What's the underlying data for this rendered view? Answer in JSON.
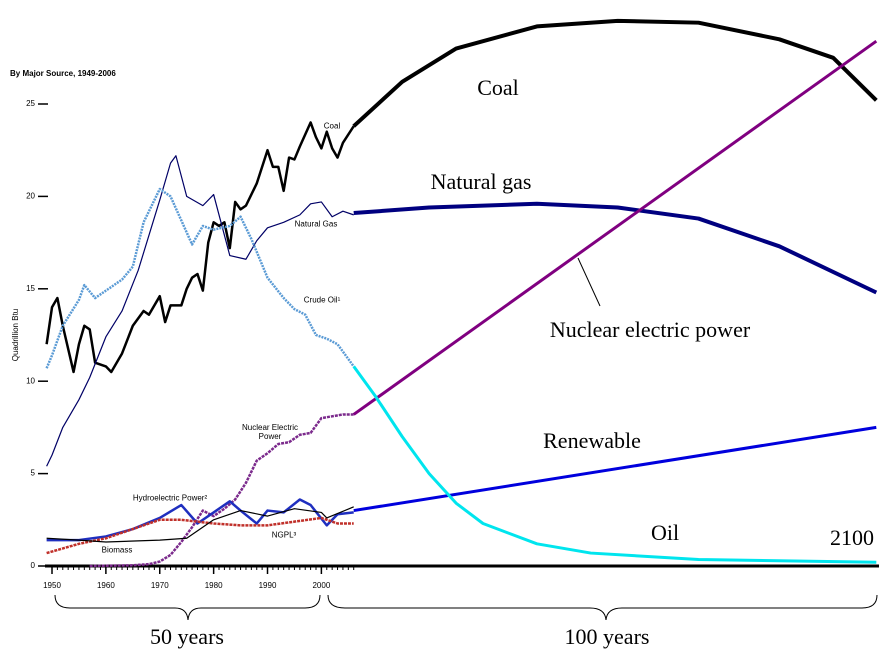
{
  "chart_data": {
    "type": "line",
    "subtitle": "By Major Source, 1949-2006",
    "ylabel": "Quadrillion Btu",
    "xlim": [
      1948.7,
      2103.5
    ],
    "ylim": [
      0,
      30
    ],
    "xticks": [
      1950,
      1960,
      1970,
      1980,
      1990,
      2000
    ],
    "yticks": [
      0,
      5,
      10,
      15,
      20,
      25
    ],
    "series": [
      {
        "name": "Coal",
        "color": "#000000",
        "x": [
          1949,
          1950,
          1951,
          1952,
          1954,
          1955,
          1956,
          1957,
          1958,
          1960,
          1961,
          1963,
          1965,
          1967,
          1968,
          1970,
          1971,
          1972,
          1974,
          1975,
          1976,
          1977,
          1978,
          1979,
          1980,
          1981,
          1982,
          1983,
          1984,
          1985,
          1986,
          1988,
          1990,
          1991,
          1992,
          1993,
          1994,
          1995,
          1996,
          1998,
          1999,
          2000,
          2001,
          2002,
          2003,
          2004,
          2006
        ],
        "values": [
          12,
          14,
          14.5,
          13,
          10.5,
          12,
          13,
          12.8,
          11,
          10.8,
          10.5,
          11.5,
          13,
          13.8,
          13.6,
          14.6,
          13.2,
          14.1,
          14.1,
          15,
          15.6,
          15.8,
          14.9,
          17.5,
          18.6,
          18.4,
          18.6,
          17.2,
          19.7,
          19.3,
          19.5,
          20.7,
          22.5,
          21.6,
          21.6,
          20.3,
          22.1,
          22,
          22.7,
          24,
          23.2,
          22.6,
          23.5,
          22.6,
          22.1,
          22.9,
          23.8
        ]
      },
      {
        "name": "Natural Gas",
        "color": "#000066",
        "x": [
          1949,
          1950,
          1952,
          1955,
          1957,
          1960,
          1963,
          1966,
          1970,
          1972,
          1973,
          1975,
          1978,
          1980,
          1983,
          1986,
          1988,
          1990,
          1993,
          1996,
          1998,
          2000,
          2002,
          2004,
          2006
        ],
        "values": [
          5.4,
          6,
          7.5,
          9,
          10.2,
          12.4,
          13.8,
          16,
          19.8,
          21.8,
          22.2,
          20,
          19.5,
          20.1,
          16.8,
          16.6,
          17.6,
          18.3,
          18.6,
          19,
          19.6,
          19.7,
          18.9,
          19.2,
          19
        ]
      },
      {
        "name": "Crude Oil¹",
        "color": "#5b9bd5",
        "x": [
          1949,
          1950,
          1952,
          1955,
          1956,
          1958,
          1960,
          1963,
          1965,
          1967,
          1970,
          1972,
          1974,
          1976,
          1978,
          1980,
          1983,
          1985,
          1987,
          1990,
          1993,
          1995,
          1997,
          1999,
          2001,
          2003,
          2006
        ],
        "values": [
          10.7,
          11.4,
          13,
          14.4,
          15.2,
          14.5,
          14.9,
          15.5,
          16.2,
          18.6,
          20.4,
          20,
          18.7,
          17.4,
          18.4,
          18.2,
          18.4,
          18.9,
          17.7,
          15.6,
          14.5,
          13.9,
          13.6,
          12.5,
          12.3,
          12,
          10.8
        ]
      },
      {
        "name": "Nuclear Electric Power",
        "color": "#7b2a8c",
        "x": [
          1957,
          1965,
          1968,
          1970,
          1972,
          1974,
          1976,
          1978,
          1980,
          1982,
          1984,
          1986,
          1988,
          1990,
          1992,
          1994,
          1996,
          1998,
          2000,
          2002,
          2004,
          2006
        ],
        "values": [
          0,
          0.04,
          0.1,
          0.24,
          0.6,
          1.3,
          2.1,
          3,
          2.7,
          3.1,
          3.6,
          4.5,
          5.7,
          6.1,
          6.6,
          6.7,
          7.1,
          7.2,
          8,
          8.1,
          8.2,
          8.2
        ]
      },
      {
        "name": "Hydroelectric Power²",
        "color": "#1f2fbf",
        "x": [
          1949,
          1955,
          1960,
          1965,
          1970,
          1974,
          1977,
          1980,
          1983,
          1985,
          1988,
          1990,
          1993,
          1996,
          1998,
          2001,
          2003,
          2006
        ],
        "values": [
          1.4,
          1.4,
          1.6,
          2,
          2.6,
          3.3,
          2.3,
          2.9,
          3.5,
          3,
          2.3,
          3,
          2.9,
          3.6,
          3.3,
          2.2,
          2.8,
          2.9
        ]
      },
      {
        "name": "NGPL³",
        "color": "#c0302a",
        "x": [
          1949,
          1955,
          1960,
          1965,
          1970,
          1974,
          1980,
          1985,
          1990,
          1995,
          2000,
          2003,
          2006
        ],
        "values": [
          0.7,
          1.2,
          1.5,
          2,
          2.5,
          2.5,
          2.3,
          2.2,
          2.2,
          2.4,
          2.6,
          2.3,
          2.3
        ]
      },
      {
        "name": "Biomass",
        "color": "#000000",
        "x": [
          1949,
          1955,
          1960,
          1970,
          1975,
          1980,
          1985,
          1990,
          1995,
          2000,
          2001,
          2006
        ],
        "values": [
          1.5,
          1.4,
          1.3,
          1.4,
          1.5,
          2.5,
          3,
          2.7,
          3.1,
          2.9,
          2.6,
          3.2
        ]
      },
      {
        "name": "Coal",
        "color": "#000000",
        "x": [
          2006,
          2015,
          2025,
          2040,
          2055,
          2070,
          2085,
          2095,
          2103
        ],
        "values": [
          23.8,
          26.2,
          28,
          29.2,
          29.5,
          29.4,
          28.5,
          27.5,
          25.2
        ]
      },
      {
        "name": "Natural gas",
        "color": "#000080",
        "x": [
          2006,
          2020,
          2040,
          2055,
          2070,
          2085,
          2103
        ],
        "values": [
          19.1,
          19.4,
          19.6,
          19.4,
          18.8,
          17.3,
          14.8
        ]
      },
      {
        "name": "Nuclear electric power",
        "color": "#800080",
        "x": [
          2006,
          2103
        ],
        "values": [
          8.2,
          28.4
        ]
      },
      {
        "name": "Renewable",
        "color": "#0000dd",
        "x": [
          2006,
          2103
        ],
        "values": [
          3,
          7.5
        ]
      },
      {
        "name": "Oil",
        "color": "#00e5ee",
        "x": [
          2006,
          2010,
          2015,
          2020,
          2025,
          2030,
          2040,
          2050,
          2070,
          2103
        ],
        "values": [
          10.8,
          9.2,
          7,
          5,
          3.4,
          2.3,
          1.2,
          0.7,
          0.35,
          0.2
        ]
      }
    ],
    "annotations": [
      "2100",
      "50 years",
      "100 years"
    ]
  }
}
